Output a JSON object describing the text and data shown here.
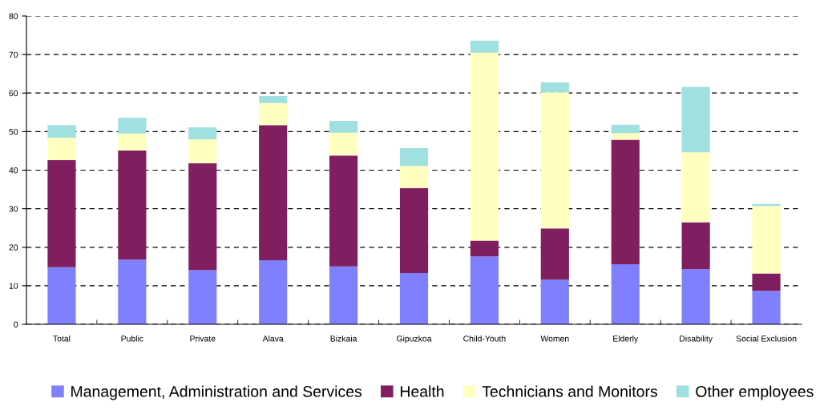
{
  "chart_data": {
    "type": "bar",
    "stacked": true,
    "categories": [
      "Total",
      "Public",
      "Private",
      "Alava",
      "Bizkaia",
      "Gipuzkoa",
      "Child-Youth",
      "Women",
      "Elderly",
      "Disability",
      "Social Exclusion"
    ],
    "series": [
      {
        "name": "Management, Administration and Services",
        "color": "#8080ff",
        "values": [
          14.8,
          16.8,
          14.1,
          16.6,
          15.0,
          13.3,
          17.6,
          11.6,
          15.6,
          14.3,
          8.7
        ]
      },
      {
        "name": "Health",
        "color": "#801f5f",
        "values": [
          27.8,
          28.3,
          27.7,
          35.1,
          28.8,
          22.0,
          4.1,
          13.3,
          32.3,
          12.2,
          4.5
        ]
      },
      {
        "name": "Technicians and Monitors",
        "color": "#ffffc0",
        "values": [
          5.8,
          4.4,
          6.2,
          5.7,
          5.9,
          5.8,
          48.8,
          35.3,
          1.7,
          18.1,
          17.5
        ]
      },
      {
        "name": "Other employees",
        "color": "#a0e0e0",
        "values": [
          3.3,
          4.1,
          3.1,
          1.8,
          3.1,
          4.6,
          3.1,
          2.6,
          2.2,
          17.0,
          0.5
        ]
      }
    ],
    "ylim": [
      0,
      80
    ],
    "yticks": [
      0,
      10,
      20,
      30,
      40,
      50,
      60,
      70,
      80
    ],
    "grid": "y",
    "legend": "bottom"
  }
}
